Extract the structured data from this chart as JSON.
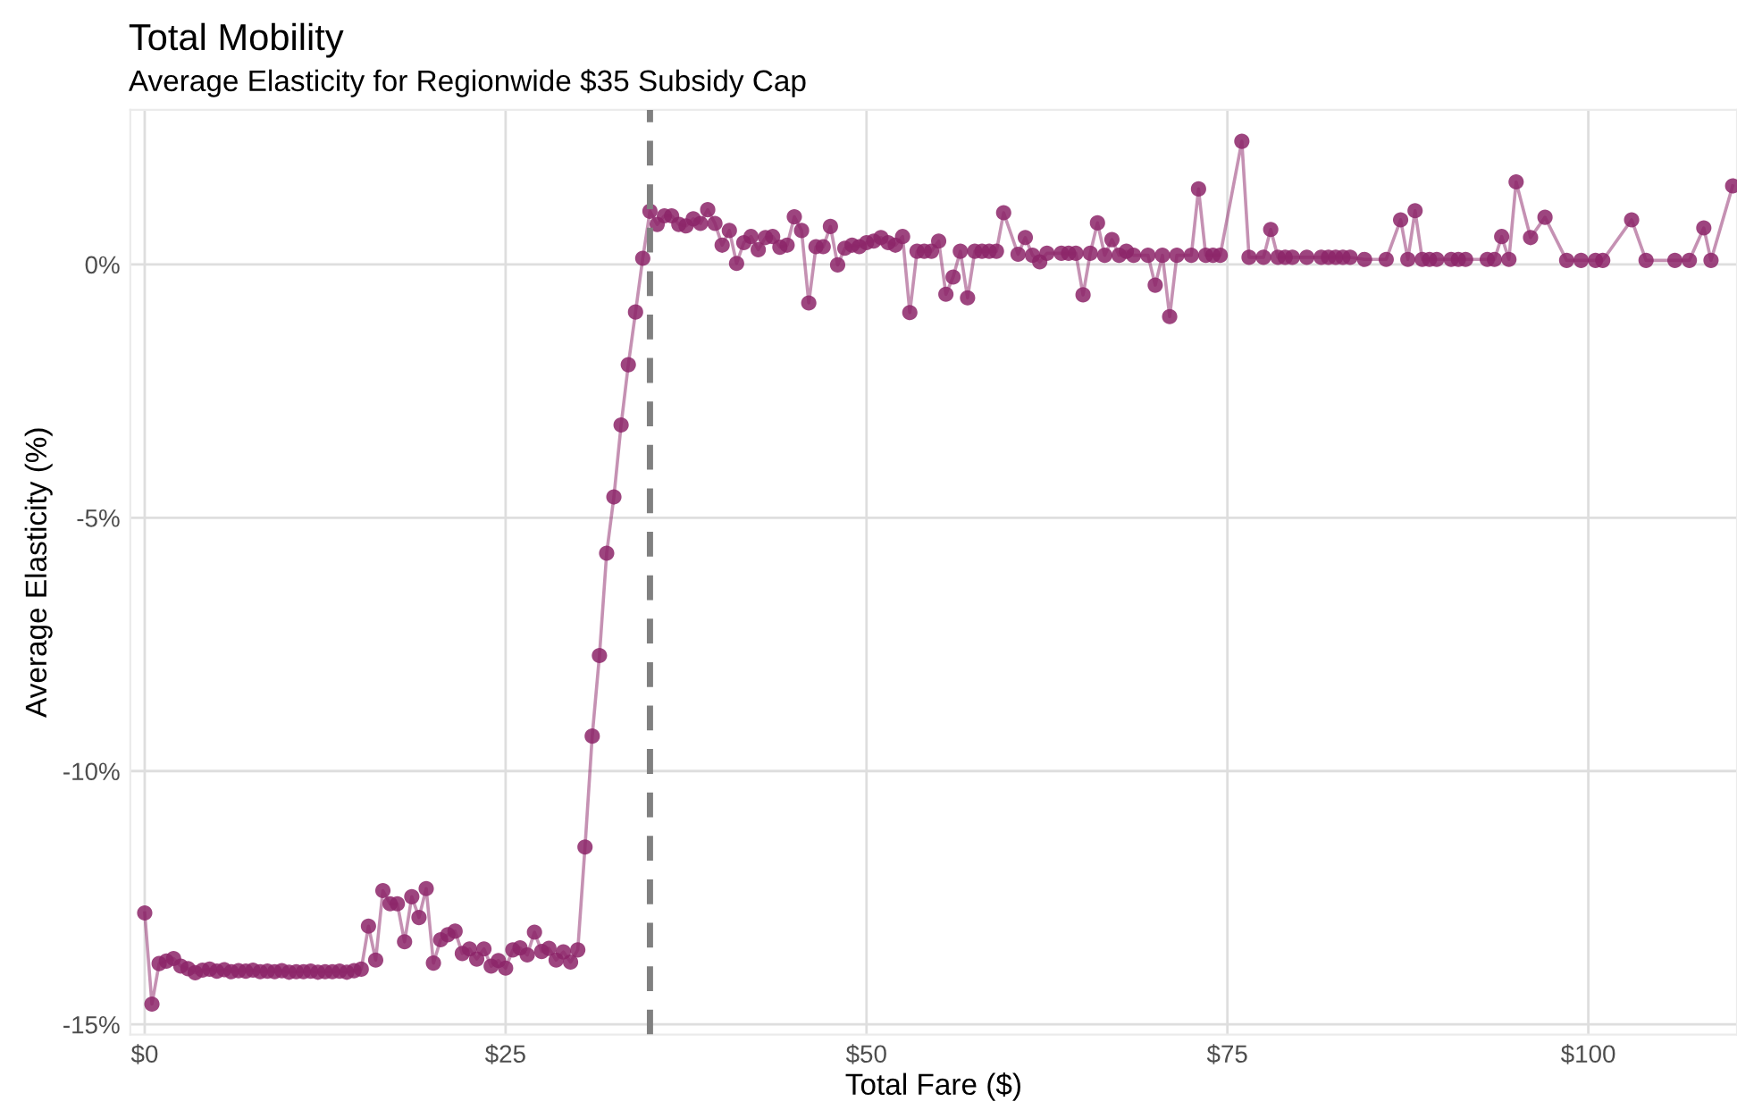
{
  "chart_data": {
    "type": "line",
    "title": "Total Mobility",
    "subtitle": "Average Elasticity for Regionwide $35 Subsidy Cap",
    "xlabel": "Total Fare ($)",
    "ylabel": "Average Elasticity (%)",
    "xlim": [
      -1,
      110.3
    ],
    "ylim": [
      -15.2,
      3.05
    ],
    "xticks": [
      {
        "value": 0,
        "label": "$0"
      },
      {
        "value": 25,
        "label": "$25"
      },
      {
        "value": 50,
        "label": "$50"
      },
      {
        "value": 75,
        "label": "$75"
      },
      {
        "value": 100,
        "label": "$100"
      }
    ],
    "yticks": [
      {
        "value": -15,
        "label": "-15%"
      },
      {
        "value": -10,
        "label": "-10%"
      },
      {
        "value": -5,
        "label": "-5%"
      },
      {
        "value": 0,
        "label": "0%"
      }
    ],
    "grid": true,
    "marker": "circle",
    "line_style": "solid",
    "ref_lines": [
      {
        "axis": "x",
        "value": 35,
        "label": null,
        "color": "#808080",
        "line_style": "dashed"
      }
    ],
    "series": [
      {
        "color": "#8c2468",
        "x": [
          0,
          0.5,
          1,
          1.5,
          2,
          2.5,
          3,
          3.5,
          4,
          4.5,
          5,
          5.5,
          6,
          6.5,
          7,
          7.5,
          8,
          8.5,
          9,
          9.5,
          10,
          10.5,
          11,
          11.5,
          12,
          12.5,
          13,
          13.5,
          14,
          14.5,
          15,
          15.5,
          16,
          16.5,
          17,
          17.5,
          18,
          18.5,
          19,
          19.5,
          20,
          20.5,
          21,
          21.5,
          22,
          22.5,
          23,
          23.5,
          24,
          24.5,
          25,
          25.5,
          26,
          26.5,
          27,
          27.5,
          28,
          28.5,
          29,
          29.5,
          30,
          30.5,
          31,
          31.5,
          32,
          32.5,
          33,
          33.5,
          34,
          34.5,
          35,
          35.5,
          36,
          36.5,
          37,
          37.5,
          38,
          38.5,
          39,
          39.5,
          40,
          40.5,
          41,
          41.5,
          42,
          42.5,
          43,
          43.5,
          44,
          44.5,
          45,
          45.5,
          46,
          46.5,
          47,
          47.5,
          48,
          48.5,
          49,
          49.5,
          50,
          50.5,
          51,
          51.5,
          52,
          52.5,
          53,
          53.5,
          54,
          54.5,
          55,
          55.5,
          56,
          56.5,
          57,
          57.5,
          58,
          58.5,
          59,
          59.5,
          60.5,
          61,
          61.5,
          62,
          62.5,
          63.5,
          64,
          64.5,
          65,
          65.5,
          66,
          66.5,
          67,
          67.5,
          68,
          68.5,
          69.5,
          70,
          70.5,
          71,
          71.5,
          72.5,
          73,
          73.5,
          74,
          74.5,
          76,
          76.5,
          77.5,
          78,
          78.5,
          79,
          79.5,
          80.5,
          81.5,
          82,
          82.5,
          83,
          83.5,
          84.5,
          86,
          87,
          87.5,
          88,
          88.5,
          89,
          89.5,
          90.5,
          91,
          91.5,
          93,
          93.5,
          94,
          94.5,
          95,
          96,
          97,
          98.5,
          99.5,
          100.5,
          101,
          103,
          104,
          106,
          107,
          108,
          108.5,
          110
        ],
        "values": [
          -12.8,
          -14.6,
          -13.8,
          -13.75,
          -13.7,
          -13.85,
          -13.9,
          -13.98,
          -13.93,
          -13.91,
          -13.95,
          -13.92,
          -13.96,
          -13.94,
          -13.95,
          -13.93,
          -13.96,
          -13.95,
          -13.96,
          -13.94,
          -13.97,
          -13.96,
          -13.96,
          -13.95,
          -13.97,
          -13.96,
          -13.96,
          -13.95,
          -13.97,
          -13.94,
          -13.91,
          -13.06,
          -13.73,
          -12.36,
          -12.62,
          -12.62,
          -13.37,
          -12.48,
          -12.89,
          -12.32,
          -13.79,
          -13.33,
          -13.23,
          -13.16,
          -13.6,
          -13.51,
          -13.71,
          -13.51,
          -13.85,
          -13.74,
          -13.89,
          -13.53,
          -13.49,
          -13.63,
          -13.18,
          -13.56,
          -13.5,
          -13.73,
          -13.57,
          -13.77,
          -13.53,
          -11.5,
          -9.31,
          -7.72,
          -5.7,
          -4.59,
          -3.17,
          -1.98,
          -0.94,
          0.12,
          1.05,
          0.79,
          0.96,
          0.96,
          0.79,
          0.76,
          0.9,
          0.81,
          1.08,
          0.81,
          0.38,
          0.67,
          0.02,
          0.43,
          0.55,
          0.29,
          0.53,
          0.55,
          0.34,
          0.38,
          0.94,
          0.67,
          -0.76,
          0.35,
          0.35,
          0.75,
          -0.01,
          0.32,
          0.38,
          0.35,
          0.43,
          0.46,
          0.53,
          0.43,
          0.38,
          0.55,
          -0.95,
          0.26,
          0.26,
          0.26,
          0.46,
          -0.59,
          -0.25,
          0.26,
          -0.66,
          0.26,
          0.26,
          0.26,
          0.26,
          1.02,
          0.2,
          0.53,
          0.18,
          0.05,
          0.22,
          0.22,
          0.22,
          0.22,
          -0.6,
          0.22,
          0.82,
          0.18,
          0.49,
          0.18,
          0.26,
          0.18,
          0.18,
          -0.41,
          0.18,
          -1.03,
          0.18,
          0.18,
          1.49,
          0.18,
          0.18,
          0.18,
          2.43,
          0.14,
          0.14,
          0.69,
          0.14,
          0.14,
          0.14,
          0.14,
          0.14,
          0.14,
          0.14,
          0.14,
          0.14,
          0.1,
          0.1,
          0.88,
          0.1,
          1.06,
          0.1,
          0.1,
          0.1,
          0.1,
          0.1,
          0.1,
          0.1,
          0.1,
          0.55,
          0.1,
          1.63,
          0.53,
          0.93,
          0.08,
          0.08,
          0.08,
          0.08,
          0.88,
          0.08,
          0.08,
          0.08,
          0.72,
          0.08,
          1.55
        ]
      }
    ]
  }
}
